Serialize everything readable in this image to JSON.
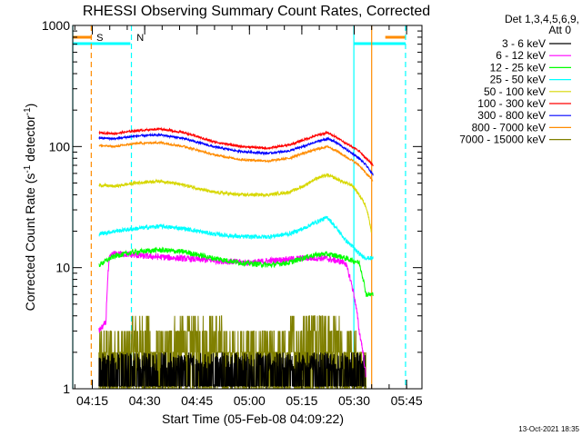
{
  "chart_data": {
    "type": "line",
    "title": "RHESSI Observing Summary Count Rates, Corrected",
    "xlabel": "Start Time (05-Feb-08 04:09:22)",
    "ylabel_main": "Corrected Count Rate (s",
    "ylabel_sup1": "-1",
    "ylabel_mid": " detector",
    "ylabel_sup2": "-1",
    "ylabel_end": ")",
    "x_unit": "minutes after 04:09:22",
    "xlim": [
      0,
      100
    ],
    "ylim": [
      1,
      1000
    ],
    "yscale": "log",
    "x_ticks": [
      {
        "x": 5.6,
        "label": "04:15"
      },
      {
        "x": 20.6,
        "label": "04:30"
      },
      {
        "x": 35.6,
        "label": "04:45"
      },
      {
        "x": 50.6,
        "label": "05:00"
      },
      {
        "x": 65.6,
        "label": "05:15"
      },
      {
        "x": 80.6,
        "label": "05:30"
      },
      {
        "x": 95.6,
        "label": "05:45"
      }
    ],
    "y_ticks": [
      {
        "y": 1,
        "label": "1"
      },
      {
        "y": 10,
        "label": "10"
      },
      {
        "y": 100,
        "label": "100"
      },
      {
        "y": 1000,
        "label": "1000"
      }
    ],
    "legend_header": [
      "Det 1,3,4,5,6,9,",
      "Att 0"
    ],
    "legend_position": "right",
    "series": [
      {
        "name": "3 - 6 keV",
        "color": "#000000",
        "x": [
          7.5,
          15,
          25,
          35,
          45,
          55,
          62,
          70,
          78,
          84
        ],
        "y": [
          1.1,
          1.5,
          1.1,
          1.5,
          1.1,
          1.3,
          1.1,
          1.4,
          1.2,
          1
        ]
      },
      {
        "name": "6 - 12 keV",
        "color": "#ff00ff",
        "x": [
          7.5,
          9.5,
          10.5,
          11.5,
          14,
          20,
          30,
          40,
          50,
          58,
          66,
          72,
          78,
          82,
          84
        ],
        "y": [
          3,
          3.5,
          12,
          13,
          13,
          12.5,
          12,
          11.5,
          11,
          11.5,
          12,
          12,
          11,
          3,
          1.2
        ]
      },
      {
        "name": "12 - 25 keV",
        "color": "#00ff00",
        "x": [
          7.5,
          12,
          18,
          25,
          32,
          40,
          48,
          56,
          62,
          68,
          72,
          76,
          78,
          80,
          82,
          84,
          86
        ],
        "y": [
          10.5,
          12.5,
          13.5,
          14,
          13.5,
          12,
          11,
          10.5,
          11,
          12.5,
          13,
          12.5,
          12,
          11.5,
          11,
          6,
          6
        ]
      },
      {
        "name": "25 - 50 keV",
        "color": "#00ffff",
        "x": [
          7.5,
          12,
          18,
          25,
          32,
          40,
          48,
          56,
          62,
          66,
          70,
          73,
          75,
          78,
          80,
          82,
          84,
          86
        ],
        "y": [
          19,
          20,
          21,
          22,
          21,
          19,
          18,
          18,
          19,
          21,
          24,
          26,
          22,
          17,
          15,
          13,
          12,
          12
        ]
      },
      {
        "name": "50 - 100 keV",
        "color": "#d7d700",
        "x": [
          7.5,
          12,
          18,
          25,
          32,
          40,
          48,
          56,
          62,
          66,
          70,
          73,
          75,
          78,
          80,
          82,
          84,
          85.5
        ],
        "y": [
          48,
          47,
          50,
          52,
          48,
          42,
          40,
          40,
          42,
          47,
          55,
          58,
          55,
          50,
          48,
          40,
          32,
          20
        ]
      },
      {
        "name": "100 - 300 keV",
        "color": "#ff0000",
        "x": [
          7.5,
          12,
          18,
          25,
          32,
          40,
          48,
          56,
          62,
          66,
          70,
          73,
          75,
          78,
          80,
          82,
          84,
          86
        ],
        "y": [
          130,
          128,
          135,
          140,
          130,
          110,
          100,
          97,
          103,
          113,
          124,
          130,
          122,
          107,
          100,
          92,
          80,
          70
        ]
      },
      {
        "name": "300 - 800 keV",
        "color": "#0000ff",
        "x": [
          7.5,
          12,
          18,
          25,
          32,
          40,
          48,
          56,
          62,
          66,
          70,
          73,
          75,
          78,
          80,
          82,
          84,
          86
        ],
        "y": [
          118,
          116,
          122,
          125,
          116,
          100,
          91,
          88,
          92,
          100,
          110,
          116,
          110,
          96,
          88,
          80,
          70,
          58
        ]
      },
      {
        "name": "800 - 7000 keV",
        "color": "#ff8c00",
        "x": [
          7.5,
          12,
          18,
          25,
          32,
          40,
          48,
          56,
          62,
          66,
          70,
          73,
          75,
          78,
          80,
          82,
          84,
          86
        ],
        "y": [
          102,
          100,
          106,
          108,
          100,
          86,
          78,
          76,
          80,
          88,
          95,
          100,
          94,
          83,
          77,
          70,
          60,
          52
        ]
      },
      {
        "name": "7000 - 15000 keV",
        "color": "#808000",
        "x": [
          7.5,
          12,
          15,
          20,
          25,
          30,
          35,
          40,
          45,
          50,
          55,
          60,
          62,
          65,
          70,
          75,
          78,
          82,
          84
        ],
        "y": [
          1.5,
          1.9,
          2.3,
          2.8,
          2,
          2.9,
          2.5,
          3.2,
          1.9,
          1.6,
          1.8,
          1.9,
          2.5,
          3.3,
          3.7,
          3.3,
          2,
          1.4,
          1.1
        ]
      }
    ],
    "flags": [
      {
        "label": "S",
        "color": "#ff8c00",
        "x_start": 0,
        "x_end": 5.5,
        "x_line": 5.3,
        "label_x": 6.8
      },
      {
        "label": "N",
        "color": "#00ffff",
        "x_start": 0,
        "x_end": 16.5,
        "x_line": 16.8,
        "label_x": 18.3
      },
      {
        "label": "",
        "color": "#00ffff",
        "x_start": 80.5,
        "x_end": 95.3,
        "x_line": 80.5,
        "label_x": 0
      },
      {
        "label": "",
        "color": "#ff8c00",
        "x_start": 89.5,
        "x_end": 95.3,
        "x_line": 89.5,
        "label_x": 0
      }
    ],
    "vlines": [
      {
        "x": 0,
        "color": "#00ffff",
        "style": "solid"
      },
      {
        "x": 5.3,
        "color": "#ff8c00",
        "style": "dashed"
      },
      {
        "x": 16.8,
        "color": "#00ffff",
        "style": "dashed"
      },
      {
        "x": 80.5,
        "color": "#00ffff",
        "style": "solid"
      },
      {
        "x": 85.6,
        "color": "#ff8c00",
        "style": "solid"
      },
      {
        "x": 95.3,
        "color": "#00ffff",
        "style": "dashed"
      }
    ],
    "footer_date": "13-Oct-2021 18:35"
  }
}
